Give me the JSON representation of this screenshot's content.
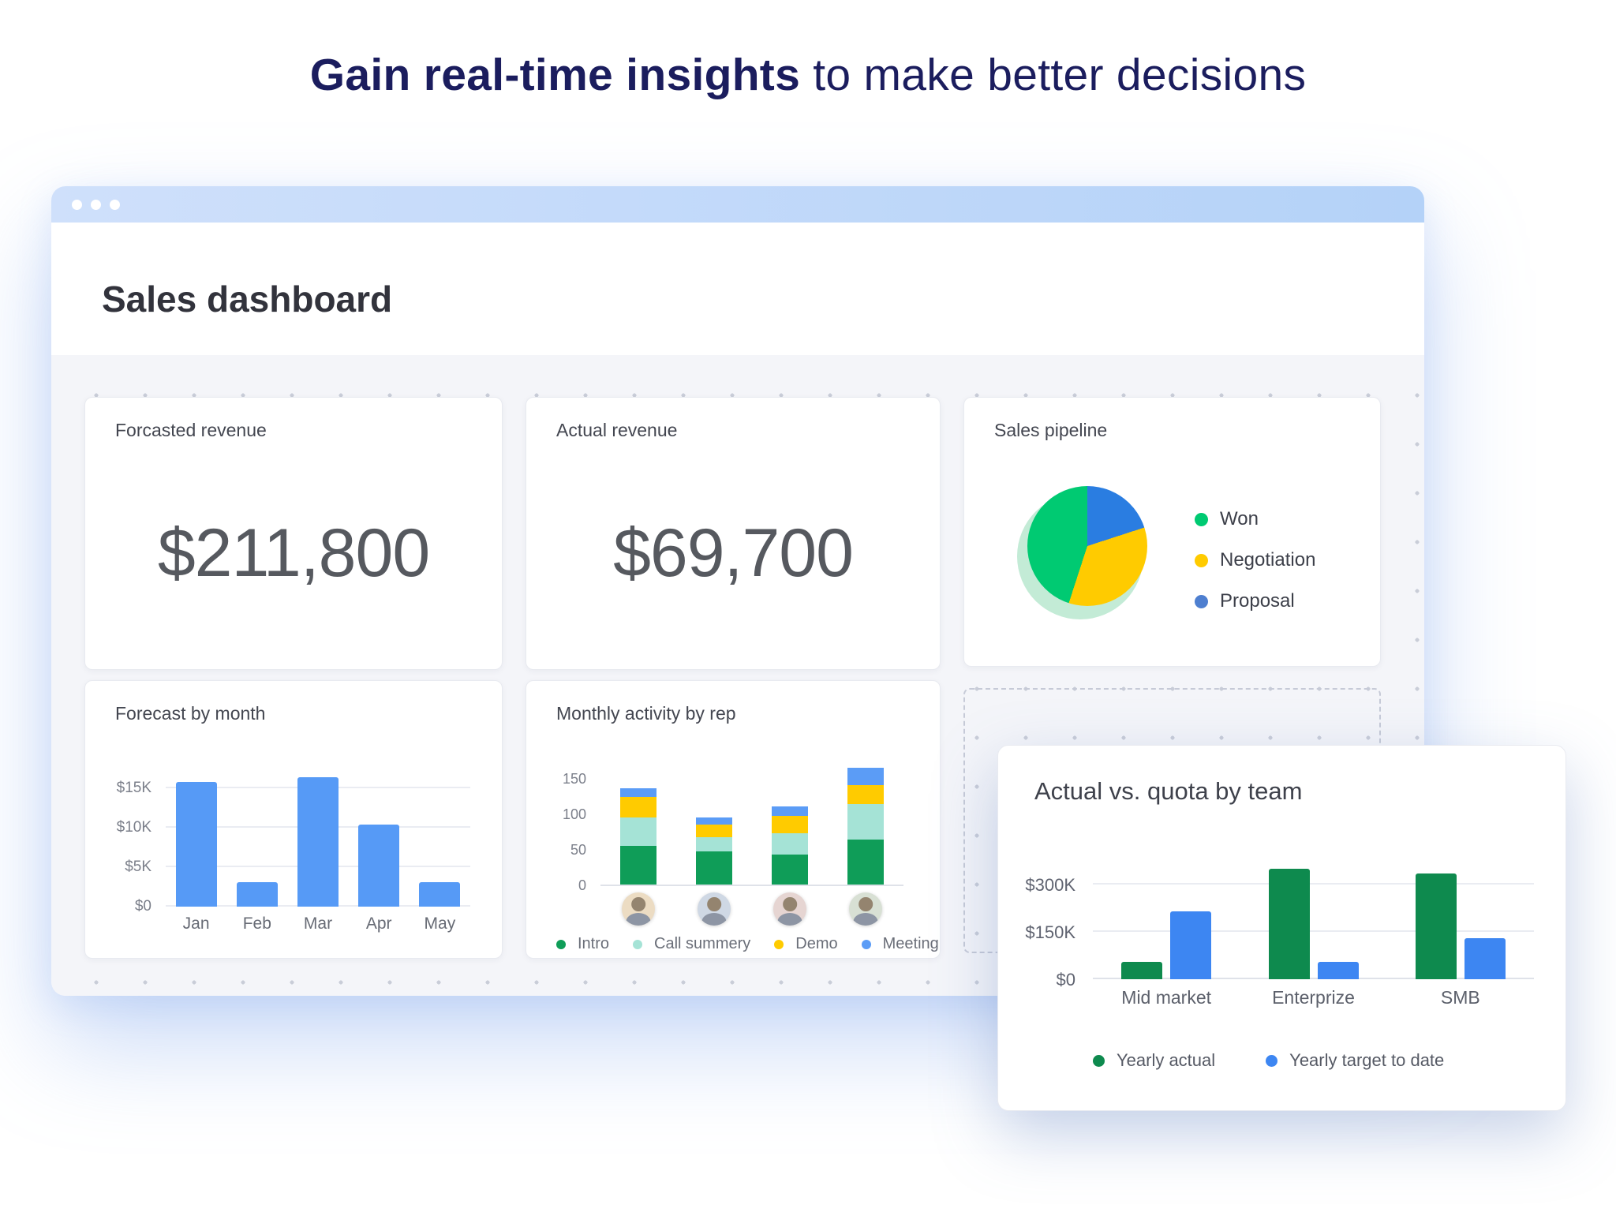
{
  "headline": {
    "highlight": "Gain real-time insights",
    "rest": " to make better decisions"
  },
  "window": {
    "title": "Sales dashboard"
  },
  "kpis": [
    {
      "title": "Forcasted revenue",
      "value": "$211,800"
    },
    {
      "title": "Actual revenue",
      "value": "$69,700"
    }
  ],
  "chart_data": [
    {
      "id": "forecast_by_month",
      "type": "bar",
      "title": "Forecast by month",
      "categories": [
        "Jan",
        "Feb",
        "Mar",
        "Apr",
        "May"
      ],
      "values": [
        15800,
        3100,
        16400,
        10400,
        3100
      ],
      "bar_color": "#569af6",
      "yticks": [
        {
          "label": "$0",
          "value": 0
        },
        {
          "label": "$5K",
          "value": 5000
        },
        {
          "label": "$10K",
          "value": 10000
        },
        {
          "label": "$15K",
          "value": 15000
        }
      ],
      "ylim": [
        0,
        19000
      ],
      "grid": true
    },
    {
      "id": "monthly_activity_by_rep",
      "type": "stacked-bar",
      "title": "Monthly activity by rep",
      "avatar_count": 4,
      "series": [
        {
          "name": "Intro",
          "color": "#0f9d58",
          "values": [
            55,
            47,
            42,
            63
          ]
        },
        {
          "name": "Call summery",
          "color": "#a5e3d6",
          "values": [
            40,
            20,
            30,
            50
          ]
        },
        {
          "name": "Demo",
          "color": "#ffcb00",
          "values": [
            28,
            17,
            25,
            27
          ]
        },
        {
          "name": "Meeting",
          "color": "#5b9cf6",
          "values": [
            13,
            10,
            13,
            25
          ]
        }
      ],
      "yticks": [
        {
          "label": "0",
          "value": 0
        },
        {
          "label": "50",
          "value": 50
        },
        {
          "label": "100",
          "value": 100
        },
        {
          "label": "150",
          "value": 150
        }
      ],
      "ylim": [
        0,
        185
      ],
      "legend_position": "bottom"
    },
    {
      "id": "sales_pipeline",
      "type": "pie",
      "title": "Sales pipeline",
      "slices": [
        {
          "label": "Proposal",
          "value": 20,
          "color": "#2a7de1"
        },
        {
          "label": "Negotiation",
          "value": 35,
          "color": "#ffcb00"
        },
        {
          "label": "Won",
          "value": 45,
          "color": "#00ca72"
        }
      ],
      "legend": [
        {
          "label": "Won",
          "color": "#00ca72"
        },
        {
          "label": "Negotiation",
          "color": "#ffcb00"
        },
        {
          "label": "Proposal",
          "color": "#4e7fd0"
        }
      ],
      "legend_position": "right"
    },
    {
      "id": "actual_vs_quota_by_team",
      "type": "grouped-bar",
      "title": "Actual vs. quota by team",
      "categories": [
        "Mid market",
        "Enterprize",
        "SMB"
      ],
      "series": [
        {
          "name": "Yearly actual",
          "color": "#0e8a4e",
          "values": [
            55000,
            350000,
            335000
          ]
        },
        {
          "name": "Yearly target to date",
          "color": "#3d86f2",
          "values": [
            215000,
            55000,
            130000
          ]
        }
      ],
      "yticks": [
        {
          "label": "$0",
          "value": 0
        },
        {
          "label": "$150K",
          "value": 150000
        },
        {
          "label": "$300K",
          "value": 300000
        }
      ],
      "ylim": [
        0,
        400000
      ],
      "legend_position": "bottom"
    }
  ]
}
